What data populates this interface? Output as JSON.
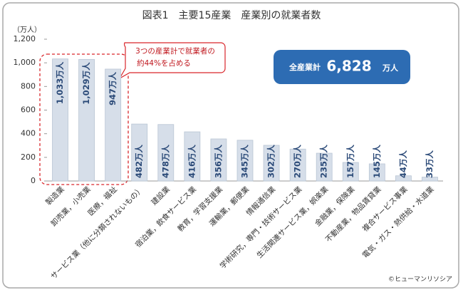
{
  "chart_data": {
    "type": "bar",
    "title": "図表1　主要15産業　産業別の就業者数",
    "y_unit": "（万人）",
    "categories": [
      "製造業",
      "卸売業，小売業",
      "医療，福祉",
      "サービス業（他に分類されないもの）",
      "建設業",
      "宿泊業，飲食サービス業",
      "教育，学習支援業",
      "運輸業，郵便業",
      "情報通信業",
      "学術研究，専門・技術サービス業",
      "生活関連サービス業，娯楽業",
      "金融業，保険業",
      "不動産業，物品賃貸業",
      "複合サービス事業",
      "電気・ガス・熱供給・水道業"
    ],
    "values": [
      1033,
      1029,
      947,
      482,
      478,
      416,
      356,
      345,
      302,
      270,
      235,
      157,
      145,
      44,
      33
    ],
    "value_labels": [
      "1,033万人",
      "1,029万人",
      "947万人",
      "482万人",
      "478万人",
      "416万人",
      "356万人",
      "345万人",
      "302万人",
      "270万人",
      "235万人",
      "157万人",
      "145万人",
      "44万人",
      "33万人"
    ],
    "color": "#d6dee9",
    "ylim": [
      0,
      1200
    ],
    "yticks": [
      0,
      200,
      400,
      600,
      800,
      {
        "value": 1000,
        "label": "1,000"
      },
      {
        "value": 1200,
        "label": "1,200"
      }
    ],
    "grid": false,
    "annotations": [
      "3つの産業計で就業者の",
      "約44%を占める"
    ],
    "total": {
      "label": "全産業計",
      "value": "6,828",
      "unit": "万人"
    },
    "credit": "©ヒューマンリソシア"
  }
}
